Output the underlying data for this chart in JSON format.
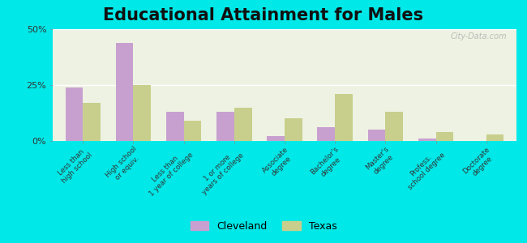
{
  "title": "Educational Attainment for Males",
  "categories": [
    "Less than\nhigh school",
    "High school\nor equiv.",
    "Less than\n1 year of college",
    "1 or more\nyears of college",
    "Associate\ndegree",
    "Bachelor's\ndegree",
    "Master's\ndegree",
    "Profess.\nschool degree",
    "Doctorate\ndegree"
  ],
  "cleveland": [
    24,
    44,
    13,
    13,
    2,
    6,
    5,
    1,
    0
  ],
  "texas": [
    17,
    25,
    9,
    15,
    10,
    21,
    13,
    4,
    3
  ],
  "cleveland_color": "#c8a0d0",
  "texas_color": "#c8cf8c",
  "background_outer": "#00e8e8",
  "background_inner": "#eef2e2",
  "ylim": [
    0,
    50
  ],
  "yticks": [
    0,
    25,
    50
  ],
  "ytick_labels": [
    "0%",
    "25%",
    "50%"
  ],
  "title_fontsize": 15,
  "legend_labels": [
    "Cleveland",
    "Texas"
  ],
  "watermark": "City-Data.com"
}
